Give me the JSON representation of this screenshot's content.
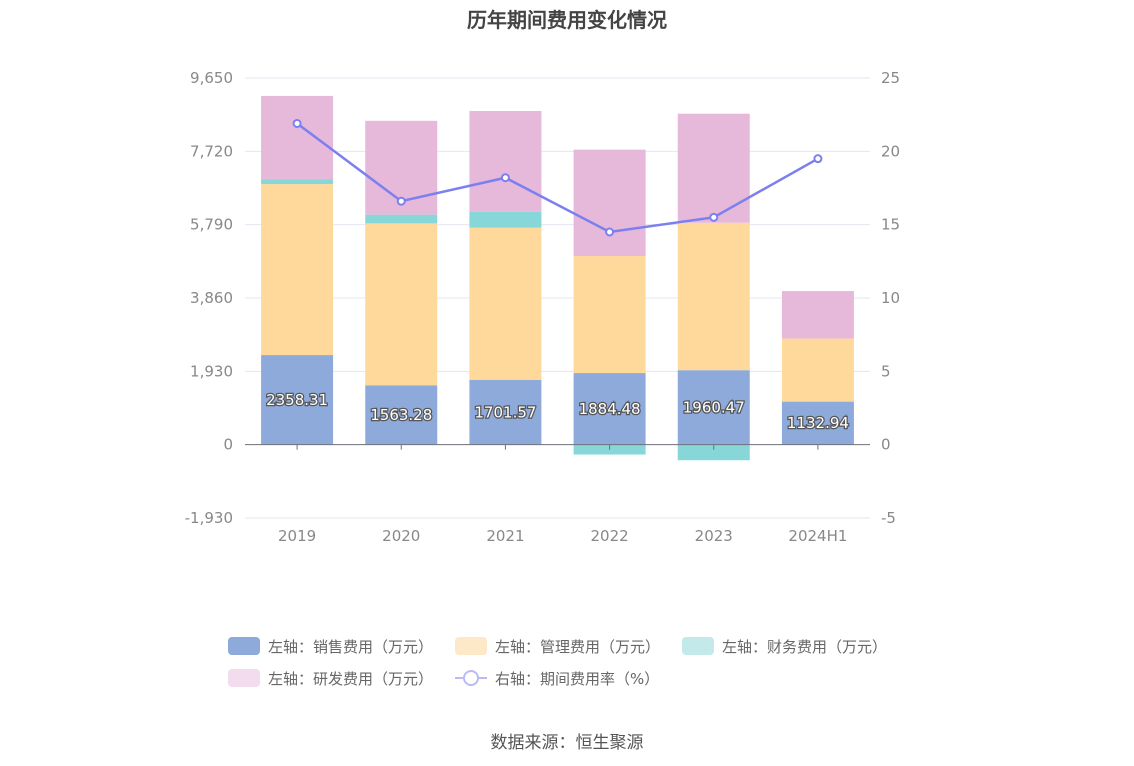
{
  "title": "历年期间费用变化情况",
  "source": "数据来源：恒生聚源",
  "chart_data": {
    "type": "bar",
    "stacked": true,
    "categories": [
      "2019",
      "2020",
      "2021",
      "2022",
      "2023",
      "2024H1"
    ],
    "left_axis": {
      "min": -1930,
      "max": 9650,
      "ticks": [
        "-1,930",
        "0",
        "1,930",
        "3,860",
        "5,790",
        "7,720",
        "9,650"
      ],
      "tick_values": [
        -1930,
        0,
        1930,
        3860,
        5790,
        7720,
        9650
      ]
    },
    "right_axis": {
      "min": -5,
      "max": 25,
      "ticks": [
        "-5",
        "0",
        "5",
        "10",
        "15",
        "20",
        "25"
      ],
      "tick_values": [
        -5,
        0,
        5,
        10,
        15,
        20,
        25
      ]
    },
    "grid": true,
    "series": [
      {
        "name": "左轴：销售费用（万元）",
        "axis": "left",
        "color": "#8eaadb",
        "values": [
          2358.31,
          1563.28,
          1701.57,
          1884.48,
          1960.47,
          1132.94
        ],
        "labels": [
          "2358.31",
          "1563.28",
          "1701.57",
          "1884.48",
          "1960.47",
          "1132.94"
        ]
      },
      {
        "name": "左轴：管理费用（万元）",
        "axis": "left",
        "color": "#ffd99c",
        "values": [
          4500,
          4260,
          4010,
          3080,
          3880,
          1660
        ]
      },
      {
        "name": "左轴：财务费用（万元）",
        "axis": "left",
        "color": "#87d6d8",
        "values": [
          120,
          230,
          420,
          -260,
          -410,
          0
        ]
      },
      {
        "name": "左轴：研发费用（万元）",
        "axis": "left",
        "color": "#e6b8da",
        "values": [
          2200,
          2470,
          2650,
          2800,
          2870,
          1250
        ]
      },
      {
        "name": "右轴：期间费用率（%）",
        "axis": "right",
        "type": "line",
        "color": "#7b80ee",
        "values": [
          21.9,
          16.6,
          18.2,
          14.5,
          15.5,
          19.5
        ]
      }
    ],
    "legend": {
      "placement": "bottom",
      "rows": [
        [
          {
            "label": "左轴：销售费用（万元）",
            "color": "#8eaadb"
          },
          {
            "label": "左轴：管理费用（万元）",
            "color": "#fde8c8"
          },
          {
            "label": "左轴：财务费用（万元）",
            "color": "#c4e9ea"
          }
        ],
        [
          {
            "label": "左轴：研发费用（万元）",
            "color": "#f3dcee"
          },
          {
            "label": "右轴：期间费用率（%）",
            "color": "#b8bbf5",
            "line": true
          }
        ]
      ]
    }
  }
}
